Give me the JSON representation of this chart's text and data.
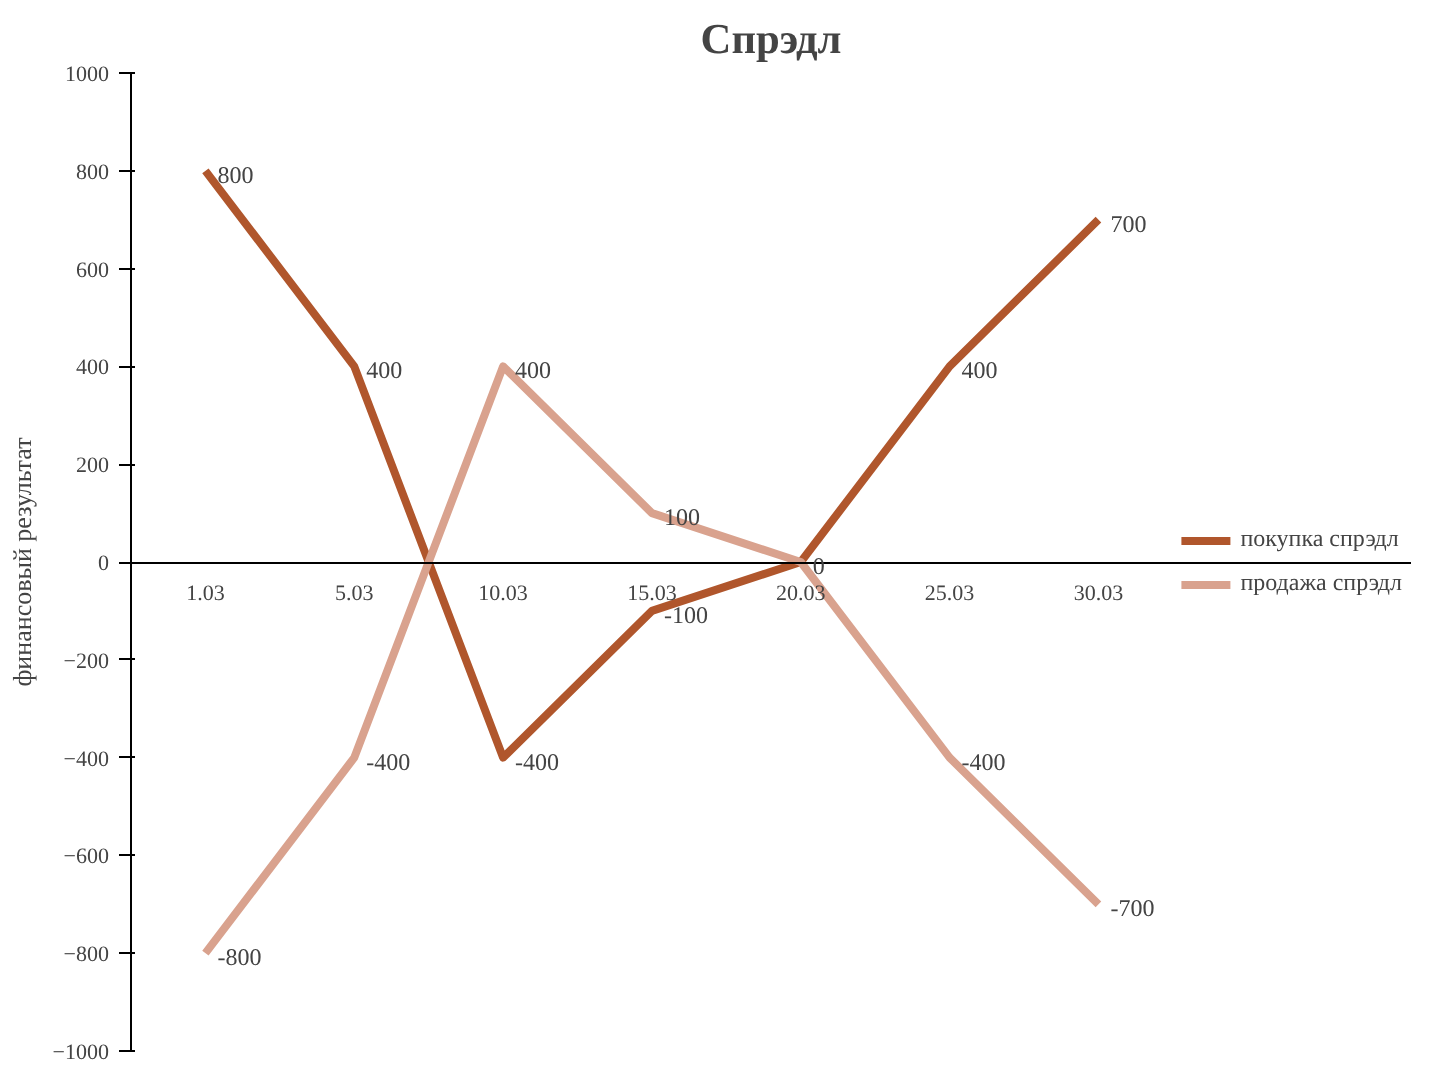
{
  "chart_data": {
    "type": "line",
    "title": "Спрэдл",
    "ylabel": "финансовый результат",
    "categories": [
      "1.03",
      "5.03",
      "10.03",
      "15.03",
      "20.03",
      "25.03",
      "30.03"
    ],
    "series": [
      {
        "name": "покупка спрэдл",
        "color": "#b0562c",
        "values": [
          800,
          400,
          -400,
          -100,
          0,
          400,
          700
        ],
        "value_labels": [
          "800",
          "400",
          "-400",
          "-100",
          "0",
          "400",
          "700"
        ]
      },
      {
        "name": "продажа спрэдл",
        "color": "#d9a28e",
        "values": [
          -800,
          -400,
          400,
          100,
          0,
          -400,
          -700
        ],
        "value_labels": [
          "-800",
          "-400",
          "400",
          "100",
          null,
          "-400",
          "-700"
        ]
      }
    ],
    "ylim": [
      -1000,
      1000
    ],
    "yticks": [
      -1000,
      -800,
      -600,
      -400,
      -200,
      0,
      200,
      400,
      600,
      800,
      1000
    ],
    "grid": false,
    "legend": "right",
    "marker": "none",
    "line_style": "solid"
  }
}
